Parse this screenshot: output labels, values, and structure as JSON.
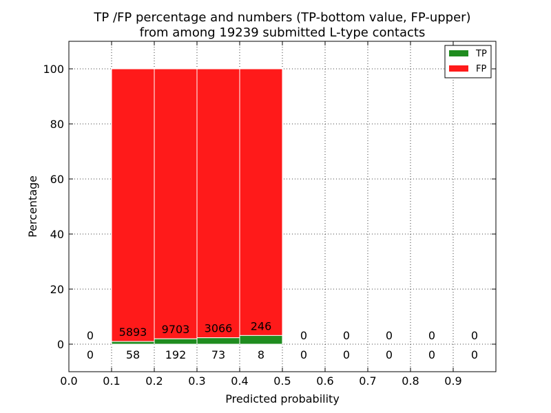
{
  "chart_data": {
    "type": "bar",
    "title_line1": "TP /FP percentage and numbers (TP-bottom value, FP-upper)",
    "title_line2": "from among 19239 submitted L-type contacts",
    "xlabel": "Predicted probability",
    "ylabel": "Percentage",
    "xlim": [
      0.0,
      1.0
    ],
    "ylim": [
      -10,
      110
    ],
    "xticks": [
      "0.0",
      "0.1",
      "0.2",
      "0.3",
      "0.4",
      "0.5",
      "0.6",
      "0.7",
      "0.8",
      "0.9"
    ],
    "yticks": [
      "0",
      "20",
      "40",
      "60",
      "80",
      "100"
    ],
    "grid": true,
    "legend_position": "top-right",
    "bin_width": 0.1,
    "bins": [
      {
        "x": 0.0,
        "tp_pct": 0.0,
        "fp_pct": 0.0,
        "tp_count": "0",
        "fp_count": "0"
      },
      {
        "x": 0.1,
        "tp_pct": 0.97,
        "fp_pct": 99.03,
        "tp_count": "58",
        "fp_count": "5893"
      },
      {
        "x": 0.2,
        "tp_pct": 1.94,
        "fp_pct": 98.06,
        "tp_count": "192",
        "fp_count": "9703"
      },
      {
        "x": 0.3,
        "tp_pct": 2.33,
        "fp_pct": 97.67,
        "tp_count": "73",
        "fp_count": "3066"
      },
      {
        "x": 0.4,
        "tp_pct": 3.15,
        "fp_pct": 96.85,
        "tp_count": "8",
        "fp_count": "246"
      },
      {
        "x": 0.5,
        "tp_pct": 0.0,
        "fp_pct": 0.0,
        "tp_count": "0",
        "fp_count": "0"
      },
      {
        "x": 0.6,
        "tp_pct": 0.0,
        "fp_pct": 0.0,
        "tp_count": "0",
        "fp_count": "0"
      },
      {
        "x": 0.7,
        "tp_pct": 0.0,
        "fp_pct": 0.0,
        "tp_count": "0",
        "fp_count": "0"
      },
      {
        "x": 0.8,
        "tp_pct": 0.0,
        "fp_pct": 0.0,
        "tp_count": "0",
        "fp_count": "0"
      },
      {
        "x": 0.9,
        "tp_pct": 0.0,
        "fp_pct": 0.0,
        "tp_count": "0",
        "fp_count": "0"
      }
    ],
    "series": [
      {
        "name": "TP",
        "color": "#1f8c1f"
      },
      {
        "name": "FP",
        "color": "#ff1a1a"
      }
    ]
  }
}
